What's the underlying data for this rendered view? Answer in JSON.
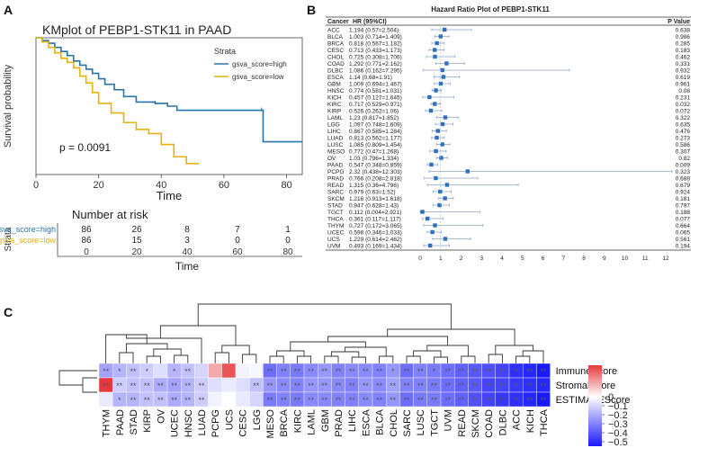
{
  "panels": {
    "a": "A",
    "b": "B",
    "c": "C"
  },
  "chart_data": [
    {
      "type": "line",
      "title": "KMplot of PEBP1-STK11 in PAAD",
      "xlabel": "Time",
      "ylabel": "Survival probability",
      "xlim": [
        0,
        85
      ],
      "ylim": [
        0,
        1.0
      ],
      "x_ticks": [
        0,
        20,
        40,
        60,
        80
      ],
      "y_ticks": [
        0.0,
        0.25,
        0.5,
        0.75,
        1.0
      ],
      "legend_title": "Strata",
      "pvalue_text": "p = 0.0091",
      "series": [
        {
          "name": "gsva_score=high",
          "color": "#2874a6",
          "x": [
            0,
            2,
            4,
            6,
            8,
            10,
            12,
            14,
            16,
            18,
            20,
            22,
            25,
            28,
            32,
            38,
            42,
            45,
            55,
            72,
            72.5,
            85
          ],
          "y": [
            1.0,
            0.98,
            0.96,
            0.93,
            0.9,
            0.87,
            0.83,
            0.8,
            0.77,
            0.74,
            0.7,
            0.66,
            0.62,
            0.57,
            0.53,
            0.52,
            0.5,
            0.47,
            0.47,
            0.47,
            0.24,
            0.24
          ]
        },
        {
          "name": "gsva_score=low",
          "color": "#e5b30e",
          "x": [
            0,
            2,
            4,
            6,
            8,
            10,
            12,
            14,
            16,
            18,
            20,
            24,
            28,
            32,
            36,
            40,
            44,
            48,
            52
          ],
          "y": [
            1.0,
            0.97,
            0.93,
            0.89,
            0.85,
            0.82,
            0.78,
            0.72,
            0.67,
            0.6,
            0.52,
            0.45,
            0.38,
            0.33,
            0.3,
            0.22,
            0.13,
            0.08,
            0.08
          ]
        }
      ]
    },
    {
      "type": "table",
      "title": "Number at risk",
      "ylabel": "Strata",
      "xlabel": "Time",
      "x_ticks": [
        0,
        20,
        40,
        60,
        80
      ],
      "rows": [
        {
          "name": "gsva_score=high",
          "color": "#2874a6",
          "values": [
            86,
            26,
            8,
            7,
            1
          ]
        },
        {
          "name": "gsva_score=low",
          "color": "#e5b30e",
          "values": [
            86,
            15,
            3,
            0,
            0
          ]
        }
      ]
    },
    {
      "type": "scatter",
      "title": "Hazard Ratio Plot of PEBP1-STK11",
      "headers": {
        "cancer": "Cancer",
        "hr": "HR (95%CI)",
        "p": "P Value"
      },
      "x_ticks": [
        0,
        1,
        2,
        3,
        4,
        5,
        6,
        7,
        8,
        9,
        10,
        11,
        12
      ],
      "rows": [
        {
          "cancer": "ACC",
          "hr_text": "1.194 (0.57=2.504)",
          "hr": 1.194,
          "lo": 0.57,
          "hi": 2.504,
          "p": "0.638"
        },
        {
          "cancer": "BLCA",
          "hr_text": "1.003 (0.714=1.409)",
          "hr": 1.003,
          "lo": 0.714,
          "hi": 1.409,
          "p": "0.986"
        },
        {
          "cancer": "BRCA",
          "hr_text": "0.818 (0.567=1.182)",
          "hr": 0.818,
          "lo": 0.567,
          "hi": 1.182,
          "p": "0.285"
        },
        {
          "cancer": "CESC",
          "hr_text": "0.713 (0.433=1.173)",
          "hr": 0.713,
          "lo": 0.433,
          "hi": 1.173,
          "p": "0.183"
        },
        {
          "cancer": "CHOL",
          "hr_text": "0.725 (0.308=1.706)",
          "hr": 0.725,
          "lo": 0.308,
          "hi": 1.706,
          "p": "0.462"
        },
        {
          "cancer": "COAD",
          "hr_text": "1.292 (0.771=2.162)",
          "hr": 1.292,
          "lo": 0.771,
          "hi": 2.162,
          "p": "0.331"
        },
        {
          "cancer": "DLBC",
          "hr_text": "1.086 (0.162=7.295)",
          "hr": 1.086,
          "lo": 0.162,
          "hi": 7.295,
          "p": "0.932"
        },
        {
          "cancer": "ESCA",
          "hr_text": "1.14 (0.68=1.91)",
          "hr": 1.14,
          "lo": 0.68,
          "hi": 1.91,
          "p": "0.619"
        },
        {
          "cancer": "GBM",
          "hr_text": "1.009 (0.694=1.467)",
          "hr": 1.009,
          "lo": 0.694,
          "hi": 1.467,
          "p": "0.961"
        },
        {
          "cancer": "HNSC",
          "hr_text": "0.774 (0.581=1.031)",
          "hr": 0.774,
          "lo": 0.581,
          "hi": 1.031,
          "p": "0.08"
        },
        {
          "cancer": "KICH",
          "hr_text": "0.457 (0.127=1.645)",
          "hr": 0.457,
          "lo": 0.127,
          "hi": 1.645,
          "p": "0.231"
        },
        {
          "cancer": "KIRC",
          "hr_text": "0.717 (0.529=0.971)",
          "hr": 0.717,
          "lo": 0.529,
          "hi": 0.971,
          "p": "0.032"
        },
        {
          "cancer": "KIRP",
          "hr_text": "0.526 (0.262=1.06)",
          "hr": 0.526,
          "lo": 0.262,
          "hi": 1.06,
          "p": "0.072"
        },
        {
          "cancer": "LAML",
          "hr_text": "1.23 (0.817=1.852)",
          "hr": 1.23,
          "lo": 0.817,
          "hi": 1.852,
          "p": "0.322"
        },
        {
          "cancer": "LGG",
          "hr_text": "1.097 (0.748=1.609)",
          "hr": 1.097,
          "lo": 0.748,
          "hi": 1.609,
          "p": "0.635"
        },
        {
          "cancer": "LIHC",
          "hr_text": "0.867 (0.585=1.284)",
          "hr": 0.867,
          "lo": 0.585,
          "hi": 1.284,
          "p": "0.476"
        },
        {
          "cancer": "LUAD",
          "hr_text": "0.813 (0.562=1.177)",
          "hr": 0.813,
          "lo": 0.562,
          "hi": 1.177,
          "p": "0.273"
        },
        {
          "cancer": "LUSC",
          "hr_text": "1.085 (0.809=1.454)",
          "hr": 1.085,
          "lo": 0.809,
          "hi": 1.454,
          "p": "0.586"
        },
        {
          "cancer": "MESO",
          "hr_text": "0.772 (0.47=1.268)",
          "hr": 0.772,
          "lo": 0.47,
          "hi": 1.268,
          "p": "0.307"
        },
        {
          "cancer": "OV",
          "hr_text": "1.03 (0.796=1.334)",
          "hr": 1.03,
          "lo": 0.796,
          "hi": 1.334,
          "p": "0.82"
        },
        {
          "cancer": "PAAD",
          "hr_text": "0.547 (0.348=0.859)",
          "hr": 0.547,
          "lo": 0.348,
          "hi": 0.859,
          "p": "0.009"
        },
        {
          "cancer": "PCPG",
          "hr_text": "2.32 (0.438=12.303)",
          "hr": 2.32,
          "lo": 0.438,
          "hi": 12.303,
          "p": "0.323"
        },
        {
          "cancer": "PRAD",
          "hr_text": "0.766 (0.208=2.818)",
          "hr": 0.766,
          "lo": 0.208,
          "hi": 2.818,
          "p": "0.688"
        },
        {
          "cancer": "READ",
          "hr_text": "1.315 (0.36=4.796)",
          "hr": 1.315,
          "lo": 0.36,
          "hi": 4.796,
          "p": "0.679"
        },
        {
          "cancer": "SARC",
          "hr_text": "0.979 (0.63=1.52)",
          "hr": 0.979,
          "lo": 0.63,
          "hi": 1.52,
          "p": "0.924"
        },
        {
          "cancer": "SKCM",
          "hr_text": "1.216 (0.913=1.618)",
          "hr": 1.216,
          "lo": 0.913,
          "hi": 1.618,
          "p": "0.181"
        },
        {
          "cancer": "STAD",
          "hr_text": "0.947 (0.628=1.43)",
          "hr": 0.947,
          "lo": 0.628,
          "hi": 1.43,
          "p": "0.797"
        },
        {
          "cancer": "TGCT",
          "hr_text": "0.112 (0.004=2.921)",
          "hr": 0.112,
          "lo": 0.004,
          "hi": 2.921,
          "p": "0.188"
        },
        {
          "cancer": "THCA",
          "hr_text": "0.361 (0.117=1.117)",
          "hr": 0.361,
          "lo": 0.117,
          "hi": 1.117,
          "p": "0.077"
        },
        {
          "cancer": "THYM",
          "hr_text": "0.727 (0.172=3.065)",
          "hr": 0.727,
          "lo": 0.172,
          "hi": 3.065,
          "p": "0.664"
        },
        {
          "cancer": "UCEC",
          "hr_text": "0.598 (0.346=1.033)",
          "hr": 0.598,
          "lo": 0.346,
          "hi": 1.033,
          "p": "0.065"
        },
        {
          "cancer": "UCS",
          "hr_text": "1.229 (0.614=2.462)",
          "hr": 1.229,
          "lo": 0.614,
          "hi": 2.462,
          "p": "0.561"
        },
        {
          "cancer": "UVM",
          "hr_text": "0.493 (0.169=1.434)",
          "hr": 0.493,
          "lo": 0.169,
          "hi": 1.434,
          "p": "0.194"
        }
      ]
    },
    {
      "type": "heatmap",
      "columns": [
        "THYM",
        "PAAD",
        "STAD",
        "KIRP",
        "OV",
        "UCEC",
        "HNSC",
        "LUAD",
        "PCPG",
        "UCS",
        "CESC",
        "LGG",
        "MESO",
        "BRCA",
        "KIRC",
        "LAML",
        "GBM",
        "PRAD",
        "LIHC",
        "ESCA",
        "BLCA",
        "CHOL",
        "SARC",
        "LUSC",
        "TGCT",
        "UVM",
        "READ",
        "SKCM",
        "COAD",
        "DLBC",
        "ACC",
        "KICH",
        "THCA"
      ],
      "rows": [
        "ImmuneScore",
        "StromalScore",
        "ESTIMATEScore"
      ],
      "values": [
        [
          -0.22,
          -0.18,
          -0.15,
          -0.12,
          -0.08,
          -0.18,
          -0.15,
          -0.1,
          0.15,
          0.3,
          -0.03,
          -0.02,
          -0.35,
          -0.3,
          -0.32,
          -0.28,
          -0.25,
          -0.3,
          -0.28,
          -0.28,
          -0.3,
          -0.25,
          -0.35,
          -0.3,
          -0.32,
          -0.35,
          -0.38,
          -0.4,
          -0.42,
          -0.45,
          -0.5,
          -0.52,
          -0.55
        ],
        [
          0.35,
          -0.12,
          -0.15,
          -0.15,
          -0.2,
          -0.22,
          -0.18,
          -0.12,
          -0.08,
          -0.05,
          -0.08,
          -0.15,
          -0.25,
          -0.28,
          -0.3,
          -0.25,
          -0.25,
          -0.28,
          -0.3,
          -0.25,
          -0.28,
          -0.22,
          -0.3,
          -0.3,
          -0.32,
          -0.35,
          -0.38,
          -0.4,
          -0.45,
          -0.45,
          -0.48,
          -0.5,
          -0.52
        ],
        [
          -0.05,
          -0.18,
          -0.18,
          -0.15,
          -0.15,
          -0.2,
          -0.18,
          -0.12,
          -0.03,
          0.0,
          -0.05,
          -0.1,
          -0.32,
          -0.3,
          -0.32,
          -0.28,
          -0.28,
          -0.3,
          -0.3,
          -0.28,
          -0.3,
          -0.25,
          -0.35,
          -0.32,
          -0.32,
          -0.35,
          -0.38,
          -0.42,
          -0.45,
          -0.48,
          -0.5,
          -0.52,
          -0.55
        ]
      ],
      "sig": [
        [
          "**",
          "*",
          "**",
          "*",
          "",
          "*",
          "**",
          "",
          "",
          "",
          "",
          "",
          "**",
          "**",
          "**",
          "**",
          "**",
          "**",
          "**",
          "**",
          "**",
          "*",
          "**",
          "**",
          "*",
          "**",
          "**",
          "**",
          "**",
          "**",
          "**",
          "**",
          "**"
        ],
        [
          "**",
          "**",
          "**",
          "**",
          "**",
          "**",
          "**",
          "**",
          "",
          "",
          "",
          "**",
          "**",
          "**",
          "**",
          "**",
          "**",
          "**",
          "**",
          "**",
          "**",
          "**",
          "**",
          "**",
          "**",
          "**",
          "**",
          "**",
          "**",
          "**",
          "**",
          "**",
          "**"
        ],
        [
          "",
          "*",
          "**",
          "**",
          "**",
          "**",
          "**",
          "**",
          "",
          "",
          "",
          "",
          "**",
          "**",
          "**",
          "**",
          "**",
          "**",
          "**",
          "**",
          "**",
          "**",
          "**",
          "**",
          "**",
          "**",
          "**",
          "**",
          "**",
          "**",
          "**",
          "**",
          "**"
        ]
      ],
      "colorbar_ticks": [
        0,
        -0.1,
        -0.2,
        -0.3,
        -0.4,
        -0.5
      ],
      "color_max": 0.35,
      "color_min": -0.55
    }
  ]
}
